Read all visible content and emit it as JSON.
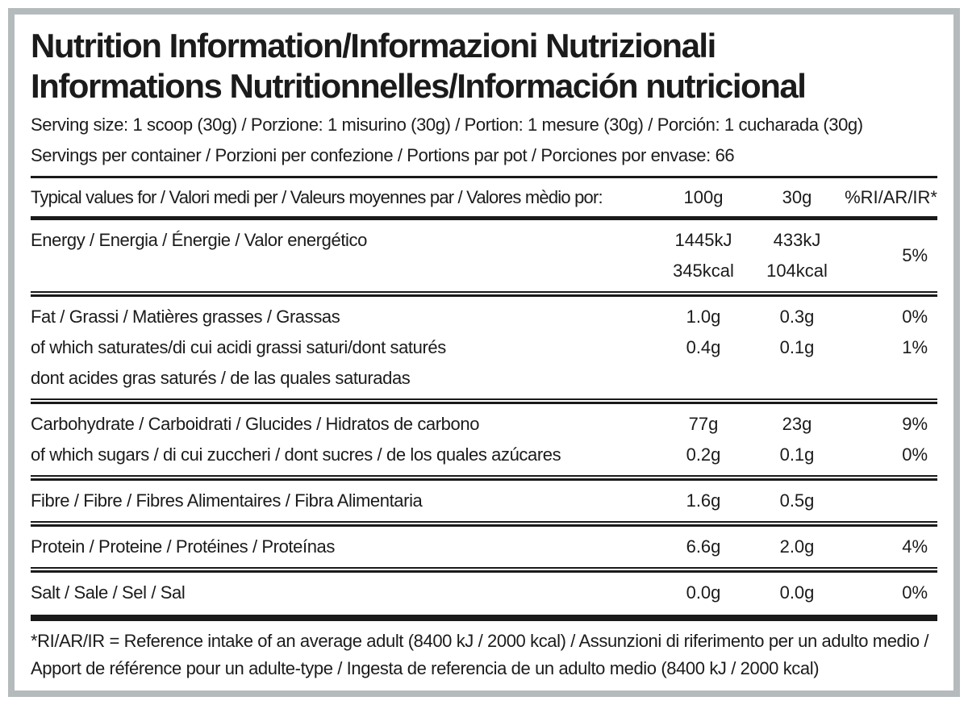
{
  "label": {
    "title_line1": "Nutrition Information/Informazioni Nutrizionali",
    "title_line2": "Informations Nutritionnelles/Información nutricional",
    "serving_size": "Serving size: 1 scoop (30g) / Porzione: 1 misurino (30g) / Portion: 1 mesure (30g) / Porción: 1 cucharada (30g)",
    "servings_per_container": "Servings per container / Porzioni per confezione / Portions par pot / Porciones por envase: 66",
    "footnote": "*RI/AR/IR = Reference intake of an average adult (8400 kJ / 2000 kcal)  / Assunzioni di riferimento per un adulto medio / Apport de référence pour un adulte-type / Ingesta de referencia de un adulto medio (8400 kJ / 2000 kcal)"
  },
  "table": {
    "header": {
      "label": "Typical values for / Valori medi per / Valeurs moyennes par / Valores mèdio por:",
      "col_100g": "100g",
      "col_30g": "30g",
      "col_ri": "%RI/AR/IR*"
    },
    "rows": [
      {
        "name": "energy",
        "ri": "5%",
        "lines": [
          {
            "label": "Energy / Energia / Énergie / Valor energético",
            "v100": "1445kJ",
            "v30": "433kJ"
          },
          {
            "label": "",
            "v100": "345kcal",
            "v30": "104kcal"
          }
        ]
      },
      {
        "name": "fat",
        "lines": [
          {
            "label": "Fat / Grassi / Matières grasses / Grassas",
            "v100": "1.0g",
            "v30": "0.3g",
            "ri": "0%"
          },
          {
            "label": "of which saturates/di cui acidi grassi saturi/dont saturés",
            "v100": "0.4g",
            "v30": "0.1g",
            "ri": "1%"
          },
          {
            "label": "dont acides gras saturés / de las quales saturadas",
            "v100": "",
            "v30": "",
            "ri": ""
          }
        ]
      },
      {
        "name": "carbohydrate",
        "lines": [
          {
            "label": "Carbohydrate / Carboidrati / Glucides / Hidratos de carbono",
            "v100": "77g",
            "v30": "23g",
            "ri": "9%"
          },
          {
            "label": "of which sugars / di cui zuccheri / dont sucres / de los quales azúcares",
            "v100": "0.2g",
            "v30": "0.1g",
            "ri": "0%"
          }
        ]
      },
      {
        "name": "fibre",
        "lines": [
          {
            "label": "Fibre / Fibre / Fibres Alimentaires / Fibra Alimentaria",
            "v100": "1.6g",
            "v30": "0.5g",
            "ri": ""
          }
        ]
      },
      {
        "name": "protein",
        "lines": [
          {
            "label": "Protein / Proteine / Protéines / Proteínas",
            "v100": "6.6g",
            "v30": "2.0g",
            "ri": "4%"
          }
        ]
      },
      {
        "name": "salt",
        "lines": [
          {
            "label": "Salt / Sale / Sel / Sal",
            "v100": "0.0g",
            "v30": "0.0g",
            "ri": "0%"
          }
        ]
      }
    ]
  },
  "colors": {
    "background": "#ffffff",
    "text": "#1b1b1b",
    "rule": "#1a1a1a",
    "border_gray": "#b5babd"
  }
}
